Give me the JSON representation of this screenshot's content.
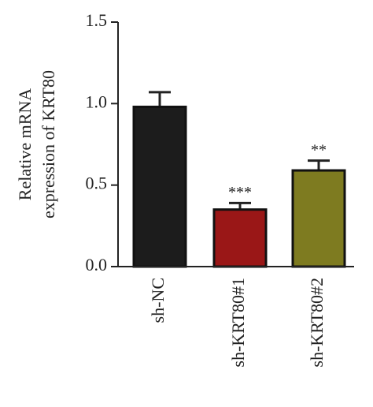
{
  "chart_data": {
    "type": "bar",
    "ylabel": [
      "Relative mRNA",
      "expression of KRT80"
    ],
    "categories": [
      "sh-NC",
      "sh-KRT80#1",
      "sh-KRT80#2"
    ],
    "values": [
      0.98,
      0.35,
      0.59
    ],
    "errors": [
      0.09,
      0.04,
      0.06
    ],
    "colors": [
      "#1c1c1c",
      "#9a1717",
      "#7e7b20"
    ],
    "value_annotations": [
      null,
      "***",
      "**"
    ],
    "ylim": [
      0,
      1.5
    ],
    "yticks": [
      {
        "value": 0,
        "label": "0.0"
      },
      0.5,
      {
        "value": 1,
        "label": "1.0"
      },
      1.5
    ]
  }
}
